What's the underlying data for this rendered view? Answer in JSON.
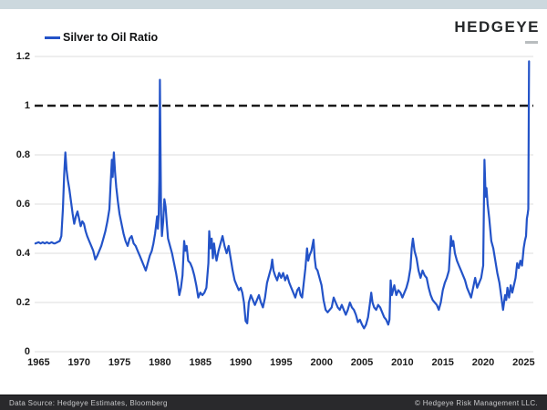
{
  "header": {
    "logo": "HEDGEYE"
  },
  "legend": {
    "label": "Silver to Oil Ratio"
  },
  "footer": {
    "left": "Data Source: Hedgeye Estimates, Bloomberg",
    "right": "© Hedgeye Risk Management LLC."
  },
  "colors": {
    "line": "#2353c8",
    "grid": "#dcdcdc",
    "reference": "#1a1a1a",
    "top_strip": "#ccd8de",
    "footer_bg": "#29292c"
  },
  "chart_data": {
    "type": "line",
    "title": "Silver to Oil Ratio",
    "legend_position": "top-left",
    "grid": "horizontal",
    "xlim": [
      1964.5,
      2026.2
    ],
    "ylim": [
      0,
      1.2
    ],
    "reference_line": {
      "value": 1,
      "style": "dashed",
      "color": "#1a1a1a"
    },
    "xticks": [
      1965,
      1970,
      1975,
      1980,
      1985,
      1990,
      1995,
      2000,
      2005,
      2010,
      2015,
      2020,
      2025
    ],
    "yticks": [
      {
        "v": 0,
        "label": "0"
      },
      {
        "v": 0.2,
        "label": "0.2"
      },
      {
        "v": 0.4,
        "label": "0.4"
      },
      {
        "v": 0.6,
        "label": "0.6"
      },
      {
        "v": 0.8,
        "label": "0.8"
      },
      {
        "v": 1,
        "label": "1"
      },
      {
        "v": 1.2,
        "label": "1.2"
      }
    ],
    "series": [
      {
        "name": "Silver to Oil Ratio",
        "color": "#2353c8",
        "points": [
          [
            1964.6,
            0.44
          ],
          [
            1965,
            0.445
          ],
          [
            1965.25,
            0.44
          ],
          [
            1965.5,
            0.445
          ],
          [
            1965.75,
            0.44
          ],
          [
            1966,
            0.445
          ],
          [
            1966.3,
            0.44
          ],
          [
            1966.6,
            0.445
          ],
          [
            1966.9,
            0.44
          ],
          [
            1967,
            0.44
          ],
          [
            1967.3,
            0.445
          ],
          [
            1967.6,
            0.45
          ],
          [
            1967.8,
            0.47
          ],
          [
            1968,
            0.58
          ],
          [
            1968.15,
            0.72
          ],
          [
            1968.3,
            0.81
          ],
          [
            1968.45,
            0.74
          ],
          [
            1968.6,
            0.7
          ],
          [
            1968.8,
            0.66
          ],
          [
            1969,
            0.61
          ],
          [
            1969.2,
            0.56
          ],
          [
            1969.4,
            0.52
          ],
          [
            1969.6,
            0.55
          ],
          [
            1969.8,
            0.57
          ],
          [
            1970,
            0.54
          ],
          [
            1970.2,
            0.51
          ],
          [
            1970.4,
            0.53
          ],
          [
            1970.6,
            0.52
          ],
          [
            1970.8,
            0.49
          ],
          [
            1971,
            0.47
          ],
          [
            1971.25,
            0.45
          ],
          [
            1971.5,
            0.43
          ],
          [
            1971.75,
            0.41
          ],
          [
            1972,
            0.375
          ],
          [
            1972.25,
            0.39
          ],
          [
            1972.5,
            0.41
          ],
          [
            1972.75,
            0.43
          ],
          [
            1973,
            0.46
          ],
          [
            1973.25,
            0.49
          ],
          [
            1973.5,
            0.53
          ],
          [
            1973.75,
            0.58
          ],
          [
            1973.9,
            0.68
          ],
          [
            1974.05,
            0.78
          ],
          [
            1974.15,
            0.71
          ],
          [
            1974.3,
            0.81
          ],
          [
            1974.45,
            0.73
          ],
          [
            1974.6,
            0.67
          ],
          [
            1974.8,
            0.61
          ],
          [
            1975,
            0.56
          ],
          [
            1975.25,
            0.52
          ],
          [
            1975.5,
            0.48
          ],
          [
            1975.75,
            0.45
          ],
          [
            1976,
            0.43
          ],
          [
            1976.25,
            0.46
          ],
          [
            1976.5,
            0.47
          ],
          [
            1976.75,
            0.44
          ],
          [
            1977,
            0.43
          ],
          [
            1977.25,
            0.41
          ],
          [
            1977.5,
            0.39
          ],
          [
            1977.75,
            0.37
          ],
          [
            1978,
            0.35
          ],
          [
            1978.25,
            0.33
          ],
          [
            1978.5,
            0.36
          ],
          [
            1978.75,
            0.39
          ],
          [
            1979,
            0.41
          ],
          [
            1979.2,
            0.44
          ],
          [
            1979.4,
            0.48
          ],
          [
            1979.55,
            0.52
          ],
          [
            1979.65,
            0.55
          ],
          [
            1979.75,
            0.5
          ],
          [
            1979.85,
            0.56
          ],
          [
            1979.93,
            0.7
          ],
          [
            1980,
            1.105
          ],
          [
            1980.07,
            0.85
          ],
          [
            1980.15,
            0.56
          ],
          [
            1980.25,
            0.47
          ],
          [
            1980.4,
            0.53
          ],
          [
            1980.55,
            0.62
          ],
          [
            1980.7,
            0.59
          ],
          [
            1980.85,
            0.52
          ],
          [
            1981,
            0.46
          ],
          [
            1981.25,
            0.43
          ],
          [
            1981.5,
            0.4
          ],
          [
            1981.75,
            0.36
          ],
          [
            1982,
            0.32
          ],
          [
            1982.2,
            0.28
          ],
          [
            1982.4,
            0.23
          ],
          [
            1982.6,
            0.26
          ],
          [
            1982.8,
            0.31
          ],
          [
            1983,
            0.45
          ],
          [
            1983.15,
            0.41
          ],
          [
            1983.3,
            0.43
          ],
          [
            1983.5,
            0.37
          ],
          [
            1983.75,
            0.36
          ],
          [
            1984,
            0.34
          ],
          [
            1984.25,
            0.31
          ],
          [
            1984.5,
            0.27
          ],
          [
            1984.75,
            0.22
          ],
          [
            1985,
            0.24
          ],
          [
            1985.25,
            0.23
          ],
          [
            1985.5,
            0.24
          ],
          [
            1985.75,
            0.26
          ],
          [
            1986,
            0.36
          ],
          [
            1986.1,
            0.49
          ],
          [
            1986.25,
            0.42
          ],
          [
            1986.4,
            0.46
          ],
          [
            1986.55,
            0.38
          ],
          [
            1986.7,
            0.44
          ],
          [
            1986.85,
            0.4
          ],
          [
            1987,
            0.37
          ],
          [
            1987.25,
            0.41
          ],
          [
            1987.5,
            0.44
          ],
          [
            1987.75,
            0.47
          ],
          [
            1988,
            0.43
          ],
          [
            1988.25,
            0.4
          ],
          [
            1988.5,
            0.43
          ],
          [
            1988.75,
            0.38
          ],
          [
            1989,
            0.33
          ],
          [
            1989.25,
            0.29
          ],
          [
            1989.5,
            0.27
          ],
          [
            1989.75,
            0.25
          ],
          [
            1990,
            0.26
          ],
          [
            1990.2,
            0.24
          ],
          [
            1990.4,
            0.2
          ],
          [
            1990.6,
            0.125
          ],
          [
            1990.8,
            0.115
          ],
          [
            1991,
            0.2
          ],
          [
            1991.25,
            0.23
          ],
          [
            1991.5,
            0.21
          ],
          [
            1991.75,
            0.19
          ],
          [
            1992,
            0.21
          ],
          [
            1992.25,
            0.23
          ],
          [
            1992.5,
            0.2
          ],
          [
            1992.75,
            0.18
          ],
          [
            1993,
            0.22
          ],
          [
            1993.25,
            0.28
          ],
          [
            1993.5,
            0.31
          ],
          [
            1993.75,
            0.34
          ],
          [
            1993.9,
            0.375
          ],
          [
            1994.05,
            0.33
          ],
          [
            1994.25,
            0.31
          ],
          [
            1994.5,
            0.29
          ],
          [
            1994.75,
            0.32
          ],
          [
            1995,
            0.3
          ],
          [
            1995.25,
            0.32
          ],
          [
            1995.5,
            0.29
          ],
          [
            1995.75,
            0.31
          ],
          [
            1996,
            0.28
          ],
          [
            1996.25,
            0.26
          ],
          [
            1996.5,
            0.24
          ],
          [
            1996.75,
            0.22
          ],
          [
            1997,
            0.25
          ],
          [
            1997.2,
            0.26
          ],
          [
            1997.4,
            0.23
          ],
          [
            1997.6,
            0.22
          ],
          [
            1997.8,
            0.28
          ],
          [
            1998,
            0.34
          ],
          [
            1998.2,
            0.42
          ],
          [
            1998.35,
            0.37
          ],
          [
            1998.5,
            0.39
          ],
          [
            1998.75,
            0.41
          ],
          [
            1999,
            0.455
          ],
          [
            1999.15,
            0.38
          ],
          [
            1999.3,
            0.34
          ],
          [
            1999.5,
            0.33
          ],
          [
            1999.75,
            0.3
          ],
          [
            2000,
            0.27
          ],
          [
            2000.25,
            0.21
          ],
          [
            2000.5,
            0.17
          ],
          [
            2000.75,
            0.16
          ],
          [
            2001,
            0.17
          ],
          [
            2001.25,
            0.18
          ],
          [
            2001.5,
            0.22
          ],
          [
            2001.75,
            0.2
          ],
          [
            2002,
            0.18
          ],
          [
            2002.25,
            0.17
          ],
          [
            2002.5,
            0.19
          ],
          [
            2002.75,
            0.17
          ],
          [
            2003,
            0.15
          ],
          [
            2003.25,
            0.17
          ],
          [
            2003.5,
            0.2
          ],
          [
            2003.75,
            0.18
          ],
          [
            2004,
            0.17
          ],
          [
            2004.25,
            0.15
          ],
          [
            2004.5,
            0.12
          ],
          [
            2004.75,
            0.13
          ],
          [
            2005,
            0.11
          ],
          [
            2005.25,
            0.095
          ],
          [
            2005.5,
            0.11
          ],
          [
            2005.75,
            0.14
          ],
          [
            2006,
            0.2
          ],
          [
            2006.15,
            0.24
          ],
          [
            2006.3,
            0.2
          ],
          [
            2006.5,
            0.18
          ],
          [
            2006.75,
            0.17
          ],
          [
            2007,
            0.19
          ],
          [
            2007.25,
            0.18
          ],
          [
            2007.5,
            0.16
          ],
          [
            2007.75,
            0.14
          ],
          [
            2008,
            0.13
          ],
          [
            2008.25,
            0.11
          ],
          [
            2008.4,
            0.13
          ],
          [
            2008.55,
            0.29
          ],
          [
            2008.7,
            0.23
          ],
          [
            2008.85,
            0.25
          ],
          [
            2009,
            0.27
          ],
          [
            2009.25,
            0.23
          ],
          [
            2009.5,
            0.25
          ],
          [
            2009.75,
            0.24
          ],
          [
            2010,
            0.22
          ],
          [
            2010.25,
            0.24
          ],
          [
            2010.5,
            0.26
          ],
          [
            2010.75,
            0.29
          ],
          [
            2011,
            0.34
          ],
          [
            2011.15,
            0.42
          ],
          [
            2011.3,
            0.46
          ],
          [
            2011.5,
            0.41
          ],
          [
            2011.75,
            0.38
          ],
          [
            2012,
            0.33
          ],
          [
            2012.25,
            0.3
          ],
          [
            2012.5,
            0.33
          ],
          [
            2012.75,
            0.31
          ],
          [
            2013,
            0.3
          ],
          [
            2013.25,
            0.26
          ],
          [
            2013.5,
            0.23
          ],
          [
            2013.75,
            0.21
          ],
          [
            2014,
            0.2
          ],
          [
            2014.25,
            0.19
          ],
          [
            2014.5,
            0.17
          ],
          [
            2014.75,
            0.2
          ],
          [
            2015,
            0.25
          ],
          [
            2015.25,
            0.28
          ],
          [
            2015.5,
            0.3
          ],
          [
            2015.75,
            0.33
          ],
          [
            2016,
            0.47
          ],
          [
            2016.15,
            0.43
          ],
          [
            2016.3,
            0.45
          ],
          [
            2016.5,
            0.4
          ],
          [
            2016.75,
            0.37
          ],
          [
            2017,
            0.35
          ],
          [
            2017.25,
            0.33
          ],
          [
            2017.5,
            0.31
          ],
          [
            2017.75,
            0.29
          ],
          [
            2018,
            0.26
          ],
          [
            2018.25,
            0.24
          ],
          [
            2018.5,
            0.22
          ],
          [
            2018.75,
            0.26
          ],
          [
            2019,
            0.3
          ],
          [
            2019.25,
            0.26
          ],
          [
            2019.5,
            0.28
          ],
          [
            2019.75,
            0.3
          ],
          [
            2020,
            0.35
          ],
          [
            2020.15,
            0.78
          ],
          [
            2020.3,
            0.63
          ],
          [
            2020.4,
            0.665
          ],
          [
            2020.55,
            0.6
          ],
          [
            2020.75,
            0.54
          ],
          [
            2021,
            0.45
          ],
          [
            2021.25,
            0.42
          ],
          [
            2021.5,
            0.37
          ],
          [
            2021.75,
            0.32
          ],
          [
            2022,
            0.28
          ],
          [
            2022.25,
            0.22
          ],
          [
            2022.45,
            0.17
          ],
          [
            2022.7,
            0.23
          ],
          [
            2022.85,
            0.21
          ],
          [
            2023,
            0.26
          ],
          [
            2023.2,
            0.22
          ],
          [
            2023.4,
            0.27
          ],
          [
            2023.6,
            0.24
          ],
          [
            2023.8,
            0.27
          ],
          [
            2024,
            0.3
          ],
          [
            2024.2,
            0.36
          ],
          [
            2024.4,
            0.34
          ],
          [
            2024.6,
            0.37
          ],
          [
            2024.8,
            0.35
          ],
          [
            2025,
            0.42
          ],
          [
            2025.15,
            0.45
          ],
          [
            2025.3,
            0.47
          ],
          [
            2025.4,
            0.54
          ],
          [
            2025.5,
            0.56
          ],
          [
            2025.58,
            0.58
          ],
          [
            2025.67,
            1.18
          ]
        ]
      }
    ]
  }
}
